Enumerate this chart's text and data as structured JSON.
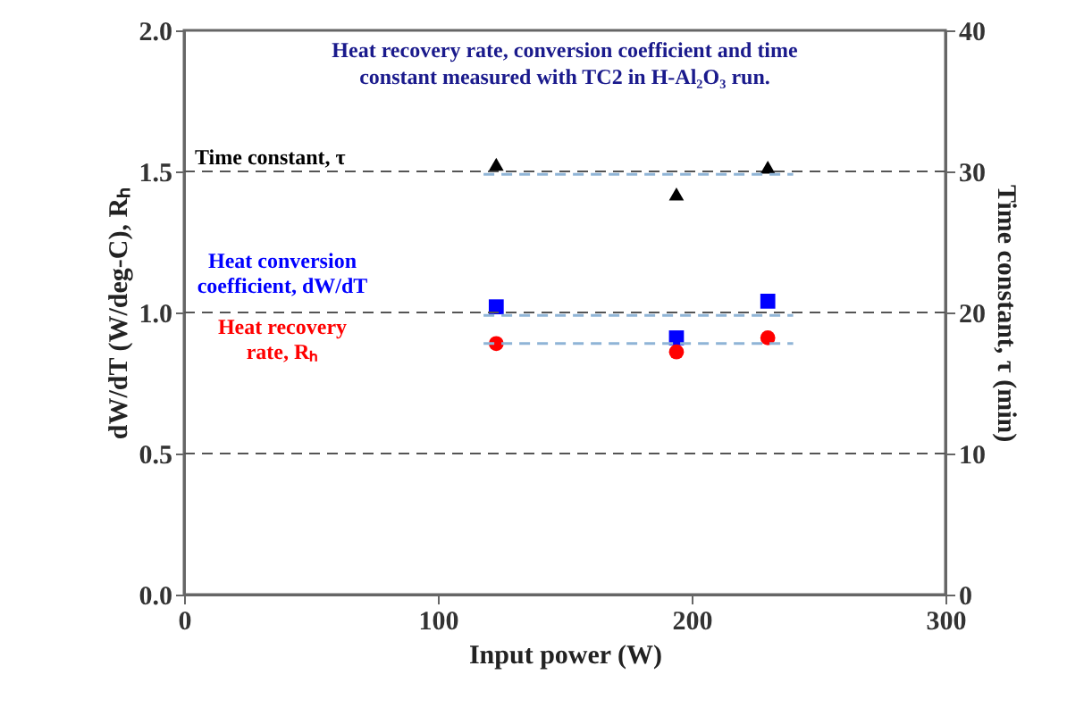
{
  "chart_data": {
    "type": "scatter",
    "title": "Heat recovery rate, conversion coefficient and time constant measured with TC2 in H-Al₂O₃ run.",
    "xlabel": "Input power  (W)",
    "ylabel": "dW/dT  (W/deg-C),   Rₕ",
    "y2label": "Time constant, τ (min)",
    "xlim": [
      0,
      300
    ],
    "xticks": [
      0,
      100,
      200,
      300
    ],
    "ylim": [
      0,
      2
    ],
    "yticks": [
      {
        "value": 0,
        "label": "0.0"
      },
      {
        "value": 0.5,
        "label": "0.5"
      },
      {
        "value": 1,
        "label": "1.0"
      },
      {
        "value": 1.5,
        "label": "1.5"
      },
      {
        "value": 2,
        "label": "2.0"
      }
    ],
    "y2lim": [
      0,
      40
    ],
    "y2ticks": [
      0,
      10,
      20,
      30,
      40
    ],
    "series": [
      {
        "name": "Time constant, τ",
        "color": "#000000",
        "marker": "triangle",
        "axis": "y2",
        "x": [
          123,
          194,
          230
        ],
        "values": [
          30.5,
          28.4,
          30.3
        ]
      },
      {
        "name": "Heat conversion coefficient, dW/dT",
        "color": "#0000ff",
        "marker": "square",
        "x": [
          123,
          194,
          230
        ],
        "values": [
          1.02,
          0.91,
          1.04
        ]
      },
      {
        "name": "Heat recovery rate, Rₕ",
        "color": "#ff0000",
        "marker": "circle",
        "x": [
          123,
          194,
          230
        ],
        "values": [
          0.89,
          0.86,
          0.91
        ]
      },
      {
        "type": "line",
        "color": "#8fb4d6",
        "line_style": "dashed",
        "marker": "none",
        "axis": "y2",
        "x": [
          118,
          240
        ],
        "values": [
          29.8,
          29.8
        ]
      },
      {
        "type": "line",
        "color": "#8fb4d6",
        "line_style": "dashed",
        "marker": "none",
        "x": [
          118,
          240
        ],
        "values": [
          0.99,
          0.99
        ]
      },
      {
        "type": "line",
        "color": "#8fb4d6",
        "line_style": "dashed",
        "marker": "none",
        "x": [
          118,
          240
        ],
        "values": [
          0.89,
          0.89
        ]
      }
    ],
    "ref_lines": [
      {
        "axis": "y",
        "value": 1.5,
        "line_style": "dashed",
        "color": "#555555"
      },
      {
        "axis": "y",
        "value": 1.0,
        "line_style": "dashed",
        "color": "#555555"
      },
      {
        "axis": "y",
        "value": 0.5,
        "line_style": "dashed",
        "color": "#555555"
      }
    ]
  }
}
